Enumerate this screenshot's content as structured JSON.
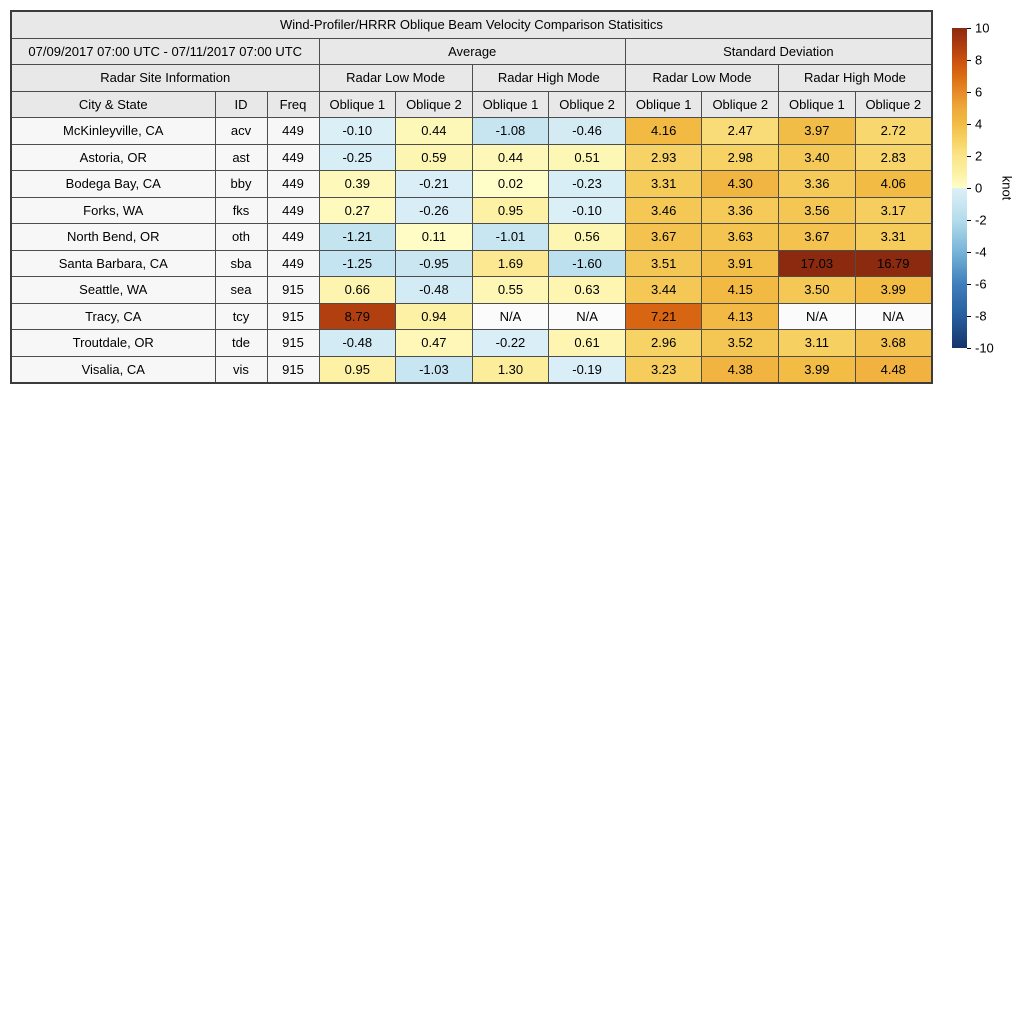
{
  "title": "Wind-Profiler/HRRR Oblique Beam Velocity Comparison Statisitics",
  "header": {
    "date_range": "07/09/2017 07:00 UTC - 07/11/2017 07:00 UTC",
    "group_average": "Average",
    "group_stddev": "Standard Deviation",
    "site_info": "Radar Site Information",
    "mode_headers": [
      "Radar Low Mode",
      "Radar High Mode",
      "Radar Low Mode",
      "Radar High Mode"
    ],
    "col_headers": [
      "City & State",
      "ID",
      "Freq",
      "Oblique 1",
      "Oblique 2",
      "Oblique 1",
      "Oblique 2",
      "Oblique 1",
      "Oblique 2",
      "Oblique 1",
      "Oblique 2"
    ]
  },
  "colors": {
    "header_bg": "#e8e8e8",
    "label_bg": "#f7f7f7",
    "na_bg": "#fbfbfb",
    "border": "#4d4d4d",
    "text": "#000000"
  },
  "color_scale": [
    {
      "v": -10,
      "c": "#143569"
    },
    {
      "v": -8,
      "c": "#285d9f"
    },
    {
      "v": -6,
      "c": "#3f7fbc"
    },
    {
      "v": -4,
      "c": "#77b3d8"
    },
    {
      "v": -2,
      "c": "#b4dceb"
    },
    {
      "v": -0.001,
      "c": "#ddf0f7"
    },
    {
      "v": 0,
      "c": "#fffec9"
    },
    {
      "v": 1,
      "c": "#fcf0a2"
    },
    {
      "v": 2,
      "c": "#fbe588"
    },
    {
      "v": 3,
      "c": "#f7d264"
    },
    {
      "v": 4,
      "c": "#f2bc45"
    },
    {
      "v": 5,
      "c": "#efa83a"
    },
    {
      "v": 6,
      "c": "#e78a28"
    },
    {
      "v": 7,
      "c": "#db6b12"
    },
    {
      "v": 8,
      "c": "#c9500f"
    },
    {
      "v": 9,
      "c": "#ac3a0f"
    },
    {
      "v": 10,
      "c": "#8c2a10"
    }
  ],
  "colorbar": {
    "label": "knot",
    "min": -10,
    "max": 10,
    "ticks": [
      10,
      8,
      6,
      4,
      2,
      0,
      -2,
      -4,
      -6,
      -8,
      -10
    ]
  },
  "chart_data": {
    "type": "table",
    "title": "Wind-Profiler/HRRR Oblique Beam Velocity Comparison Statisitics",
    "date_range": "07/09/2017 07:00 UTC - 07/11/2017 07:00 UTC",
    "column_groups": [
      "Average / Radar Low Mode",
      "Average / Radar High Mode",
      "Standard Deviation / Radar Low Mode",
      "Standard Deviation / Radar High Mode"
    ],
    "value_columns": [
      "Avg Low Oblique 1",
      "Avg Low Oblique 2",
      "Avg High Oblique 1",
      "Avg High Oblique 2",
      "SD Low Oblique 1",
      "SD Low Oblique 2",
      "SD High Oblique 1",
      "SD High Oblique 2"
    ],
    "rows": [
      {
        "city": "McKinleyville, CA",
        "id": "acv",
        "freq": "449",
        "values": [
          "-0.10",
          "0.44",
          "-1.08",
          "-0.46",
          "4.16",
          "2.47",
          "3.97",
          "2.72"
        ]
      },
      {
        "city": "Astoria, OR",
        "id": "ast",
        "freq": "449",
        "values": [
          "-0.25",
          "0.59",
          "0.44",
          "0.51",
          "2.93",
          "2.98",
          "3.40",
          "2.83"
        ]
      },
      {
        "city": "Bodega Bay, CA",
        "id": "bby",
        "freq": "449",
        "values": [
          "0.39",
          "-0.21",
          "0.02",
          "-0.23",
          "3.31",
          "4.30",
          "3.36",
          "4.06"
        ]
      },
      {
        "city": "Forks, WA",
        "id": "fks",
        "freq": "449",
        "values": [
          "0.27",
          "-0.26",
          "0.95",
          "-0.10",
          "3.46",
          "3.36",
          "3.56",
          "3.17"
        ]
      },
      {
        "city": "North Bend, OR",
        "id": "oth",
        "freq": "449",
        "values": [
          "-1.21",
          "0.11",
          "-1.01",
          "0.56",
          "3.67",
          "3.63",
          "3.67",
          "3.31"
        ]
      },
      {
        "city": "Santa Barbara, CA",
        "id": "sba",
        "freq": "449",
        "values": [
          "-1.25",
          "-0.95",
          "1.69",
          "-1.60",
          "3.51",
          "3.91",
          "17.03",
          "16.79"
        ]
      },
      {
        "city": "Seattle, WA",
        "id": "sea",
        "freq": "915",
        "values": [
          "0.66",
          "-0.48",
          "0.55",
          "0.63",
          "3.44",
          "4.15",
          "3.50",
          "3.99"
        ]
      },
      {
        "city": "Tracy, CA",
        "id": "tcy",
        "freq": "915",
        "values": [
          "8.79",
          "0.94",
          "N/A",
          "N/A",
          "7.21",
          "4.13",
          "N/A",
          "N/A"
        ]
      },
      {
        "city": "Troutdale, OR",
        "id": "tde",
        "freq": "915",
        "values": [
          "-0.48",
          "0.47",
          "-0.22",
          "0.61",
          "2.96",
          "3.52",
          "3.11",
          "3.68"
        ]
      },
      {
        "city": "Visalia, CA",
        "id": "vis",
        "freq": "915",
        "values": [
          "0.95",
          "-1.03",
          "1.30",
          "-0.19",
          "3.23",
          "4.38",
          "3.99",
          "4.48"
        ]
      }
    ],
    "colorbar": {
      "label": "knot",
      "range": [
        -10,
        10
      ],
      "tick_step": 2
    }
  }
}
